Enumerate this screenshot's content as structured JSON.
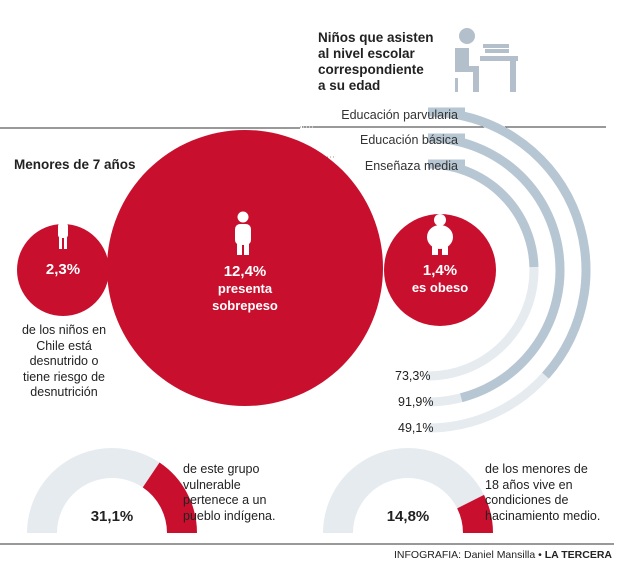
{
  "header": {
    "title_lines": [
      "Niños que asisten",
      "al nivel escolar",
      "correspondiente",
      "a su edad"
    ]
  },
  "education_levels": [
    {
      "label": "Educación parvularia",
      "value_label": "73,3%"
    },
    {
      "label": "Educación básica",
      "value_label": "91,9%"
    },
    {
      "label": "Enseñaza media",
      "value_label": "49,1%"
    }
  ],
  "section": {
    "title": "Menores de 7 años"
  },
  "circles": {
    "left": {
      "value": "2,3%",
      "caption_lines": [
        "de los niños en",
        "Chile está",
        "desnutrido o",
        "tiene riesgo de",
        "desnutrición"
      ]
    },
    "center": {
      "value": "12,4%",
      "label_lines": [
        "presenta",
        "sobrepeso"
      ]
    },
    "right": {
      "value": "1,4%",
      "label": "es obeso"
    }
  },
  "gauges": {
    "left": {
      "value": "31,1%",
      "caption_lines": [
        "de este grupo",
        "vulnerable",
        "pertenece a un",
        "pueblo indígena."
      ]
    },
    "right": {
      "value": "14,8%",
      "caption_lines": [
        "de los menores de",
        "18 años vive en",
        "condiciones de",
        "hacinamiento medio."
      ]
    }
  },
  "footer": {
    "credit_prefix": "INFOGRAFIA: Daniel Mansilla • ",
    "credit_brand": "LA TERCERA"
  },
  "colors": {
    "accent": "#c8102e",
    "arc_track": "#e6ebf0",
    "arc_fill": "#b7c6d3",
    "text": "#222222"
  },
  "chart_data": [
    {
      "type": "area",
      "title": "Niños que asisten al nivel escolar correspondiente a su edad",
      "categories": [
        "Educación parvularia",
        "Educación básica",
        "Enseñaza media"
      ],
      "values": [
        73.3,
        91.9,
        49.1
      ],
      "unit": "%"
    },
    {
      "type": "scatter",
      "title": "Menores de 7 años",
      "categories": [
        "desnutrido o tiene riesgo de desnutrición",
        "presenta sobrepeso",
        "es obeso"
      ],
      "values": [
        2.3,
        12.4,
        1.4
      ],
      "unit": "%"
    },
    {
      "type": "pie",
      "categories": [
        "pertenece a un pueblo indígena",
        "hacinamiento medio"
      ],
      "values": [
        31.1,
        14.8
      ],
      "unit": "%"
    }
  ]
}
